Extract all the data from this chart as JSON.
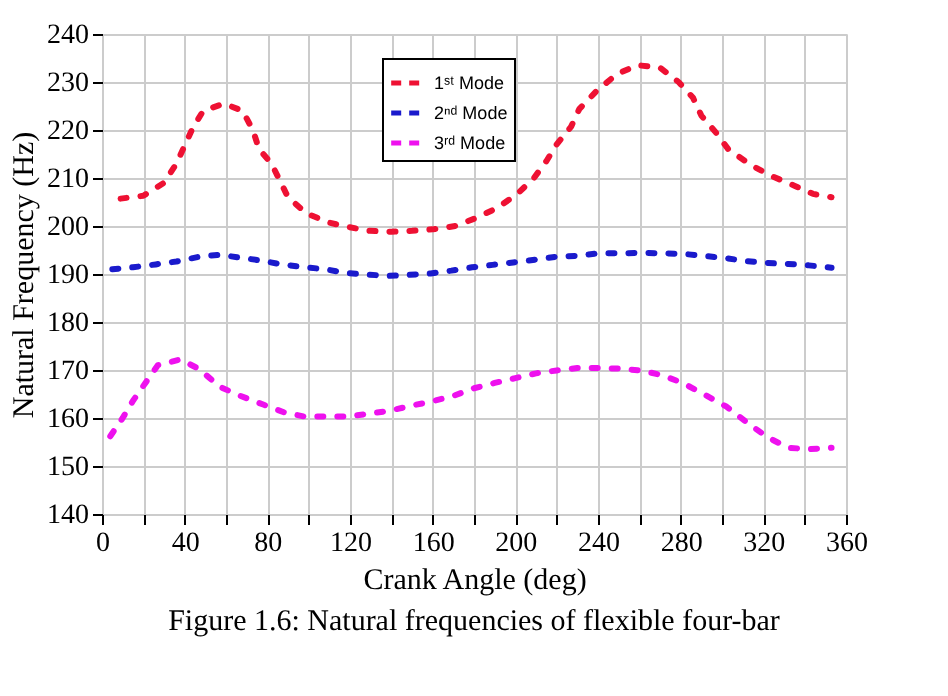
{
  "chart_data": {
    "type": "line",
    "xlabel": "Crank Angle (deg)",
    "ylabel": "Natural Frequency (Hz)",
    "annotations": [
      "Figure 1.6: Natural frequencies of flexible four-bar"
    ],
    "xlim": [
      0,
      360
    ],
    "ylim": [
      140,
      240
    ],
    "xticks": [
      0,
      {
        "value": 20,
        "label": null
      },
      40,
      {
        "value": 60,
        "label": null
      },
      80,
      {
        "value": 100,
        "label": null
      },
      120,
      {
        "value": 140,
        "label": null
      },
      160,
      {
        "value": 180,
        "label": null
      },
      200,
      {
        "value": 220,
        "label": null
      },
      240,
      {
        "value": 260,
        "label": null
      },
      280,
      {
        "value": 300,
        "label": null
      },
      320,
      {
        "value": 340,
        "label": null
      },
      360
    ],
    "yticks": [
      140,
      150,
      160,
      170,
      180,
      190,
      200,
      210,
      220,
      230,
      240
    ],
    "grid": true,
    "legend": "top",
    "line_style": "dotted",
    "marker": "none",
    "series": [
      {
        "name": "1ˢᵗ Mode",
        "color": "#ee1133",
        "x": [
          9,
          20,
          30,
          36,
          44,
          49,
          59,
          68,
          73,
          76,
          82,
          90,
          99,
          110,
          119,
          129,
          140,
          150,
          160,
          171,
          180,
          191,
          201,
          209,
          215,
          220,
          227,
          231,
          239,
          249,
          259,
          270,
          279,
          286,
          290,
          297,
          303,
          314,
          324,
          335,
          344,
          353
        ],
        "values": [
          205.7,
          206.3,
          209,
          213,
          220.5,
          224,
          225.5,
          224,
          220,
          216,
          213,
          206,
          202.6,
          200.7,
          199.8,
          199,
          198.8,
          199,
          199.3,
          200,
          201.5,
          203.7,
          206.7,
          210,
          213.5,
          217,
          220.7,
          224.4,
          228,
          231.6,
          233.5,
          233,
          230,
          226.7,
          223,
          219.5,
          216,
          212.7,
          210.4,
          208.4,
          206.7,
          206
        ]
      },
      {
        "name": "2ⁿᵈ Mode",
        "color": "#1a1acc",
        "x": [
          5,
          15,
          26,
          36,
          47,
          57,
          67,
          77,
          87,
          98,
          108,
          118,
          128,
          138,
          148,
          159,
          169,
          179,
          189,
          199,
          210,
          220,
          230,
          240,
          251,
          261,
          271,
          281,
          291,
          302,
          311,
          322,
          332,
          342,
          353
        ],
        "values": [
          191,
          191.4,
          192,
          192.6,
          193.6,
          194,
          193.4,
          192.8,
          192,
          191.4,
          191,
          190.2,
          189.9,
          189.6,
          189.8,
          190.1,
          190.7,
          191.4,
          191.9,
          192.4,
          193,
          193.6,
          193.8,
          194.3,
          194.3,
          194.4,
          194.3,
          194.2,
          193.8,
          193.3,
          192.7,
          192.3,
          192.1,
          191.8,
          191.3
        ]
      },
      {
        "name": "3ʳᵈ Mode",
        "color": "#ee11ee",
        "x": [
          4,
          10,
          15,
          21,
          27,
          38,
          47,
          57,
          67,
          78,
          88,
          98,
          108,
          119,
          129,
          139,
          149,
          159,
          170,
          180,
          190,
          200,
          210,
          220,
          230,
          240,
          250,
          261,
          271,
          281,
          291,
          302,
          312,
          322,
          332,
          342,
          353
        ],
        "values": [
          156.2,
          160,
          163.6,
          167.3,
          171,
          172.2,
          170.2,
          166.5,
          164.6,
          162.8,
          161.2,
          160.3,
          160.3,
          160.3,
          160.9,
          161.5,
          162.5,
          163.4,
          164.6,
          166.2,
          167.3,
          168.3,
          169.3,
          169.9,
          170.4,
          170.4,
          170.3,
          169.9,
          168.9,
          167.3,
          165,
          162.4,
          159.1,
          156,
          153.8,
          153.5,
          153.8
        ]
      }
    ]
  }
}
